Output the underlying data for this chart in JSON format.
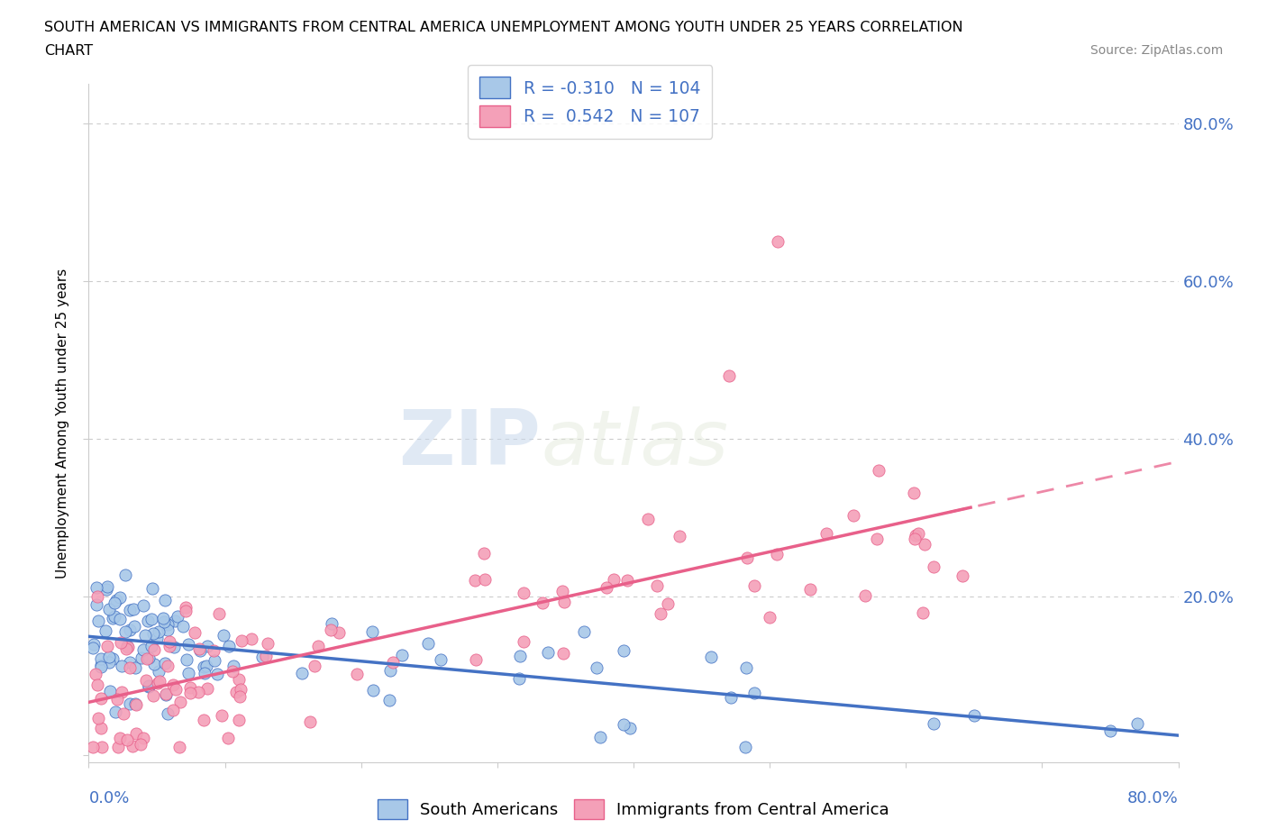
{
  "title_line1": "SOUTH AMERICAN VS IMMIGRANTS FROM CENTRAL AMERICA UNEMPLOYMENT AMONG YOUTH UNDER 25 YEARS CORRELATION",
  "title_line2": "CHART",
  "source": "Source: ZipAtlas.com",
  "ylabel": "Unemployment Among Youth under 25 years",
  "xrange": [
    0,
    0.8
  ],
  "yrange": [
    -0.01,
    0.85
  ],
  "blue_color": "#a8c8e8",
  "blue_line_color": "#4472c4",
  "pink_color": "#f4a0b8",
  "pink_line_color": "#e8608a",
  "blue_R": -0.31,
  "blue_N": 104,
  "pink_R": 0.542,
  "pink_N": 107,
  "legend_text_color": "#4472c4",
  "watermark_zip": "ZIP",
  "watermark_atlas": "atlas",
  "grid_color": "#cccccc",
  "background_color": "#ffffff"
}
